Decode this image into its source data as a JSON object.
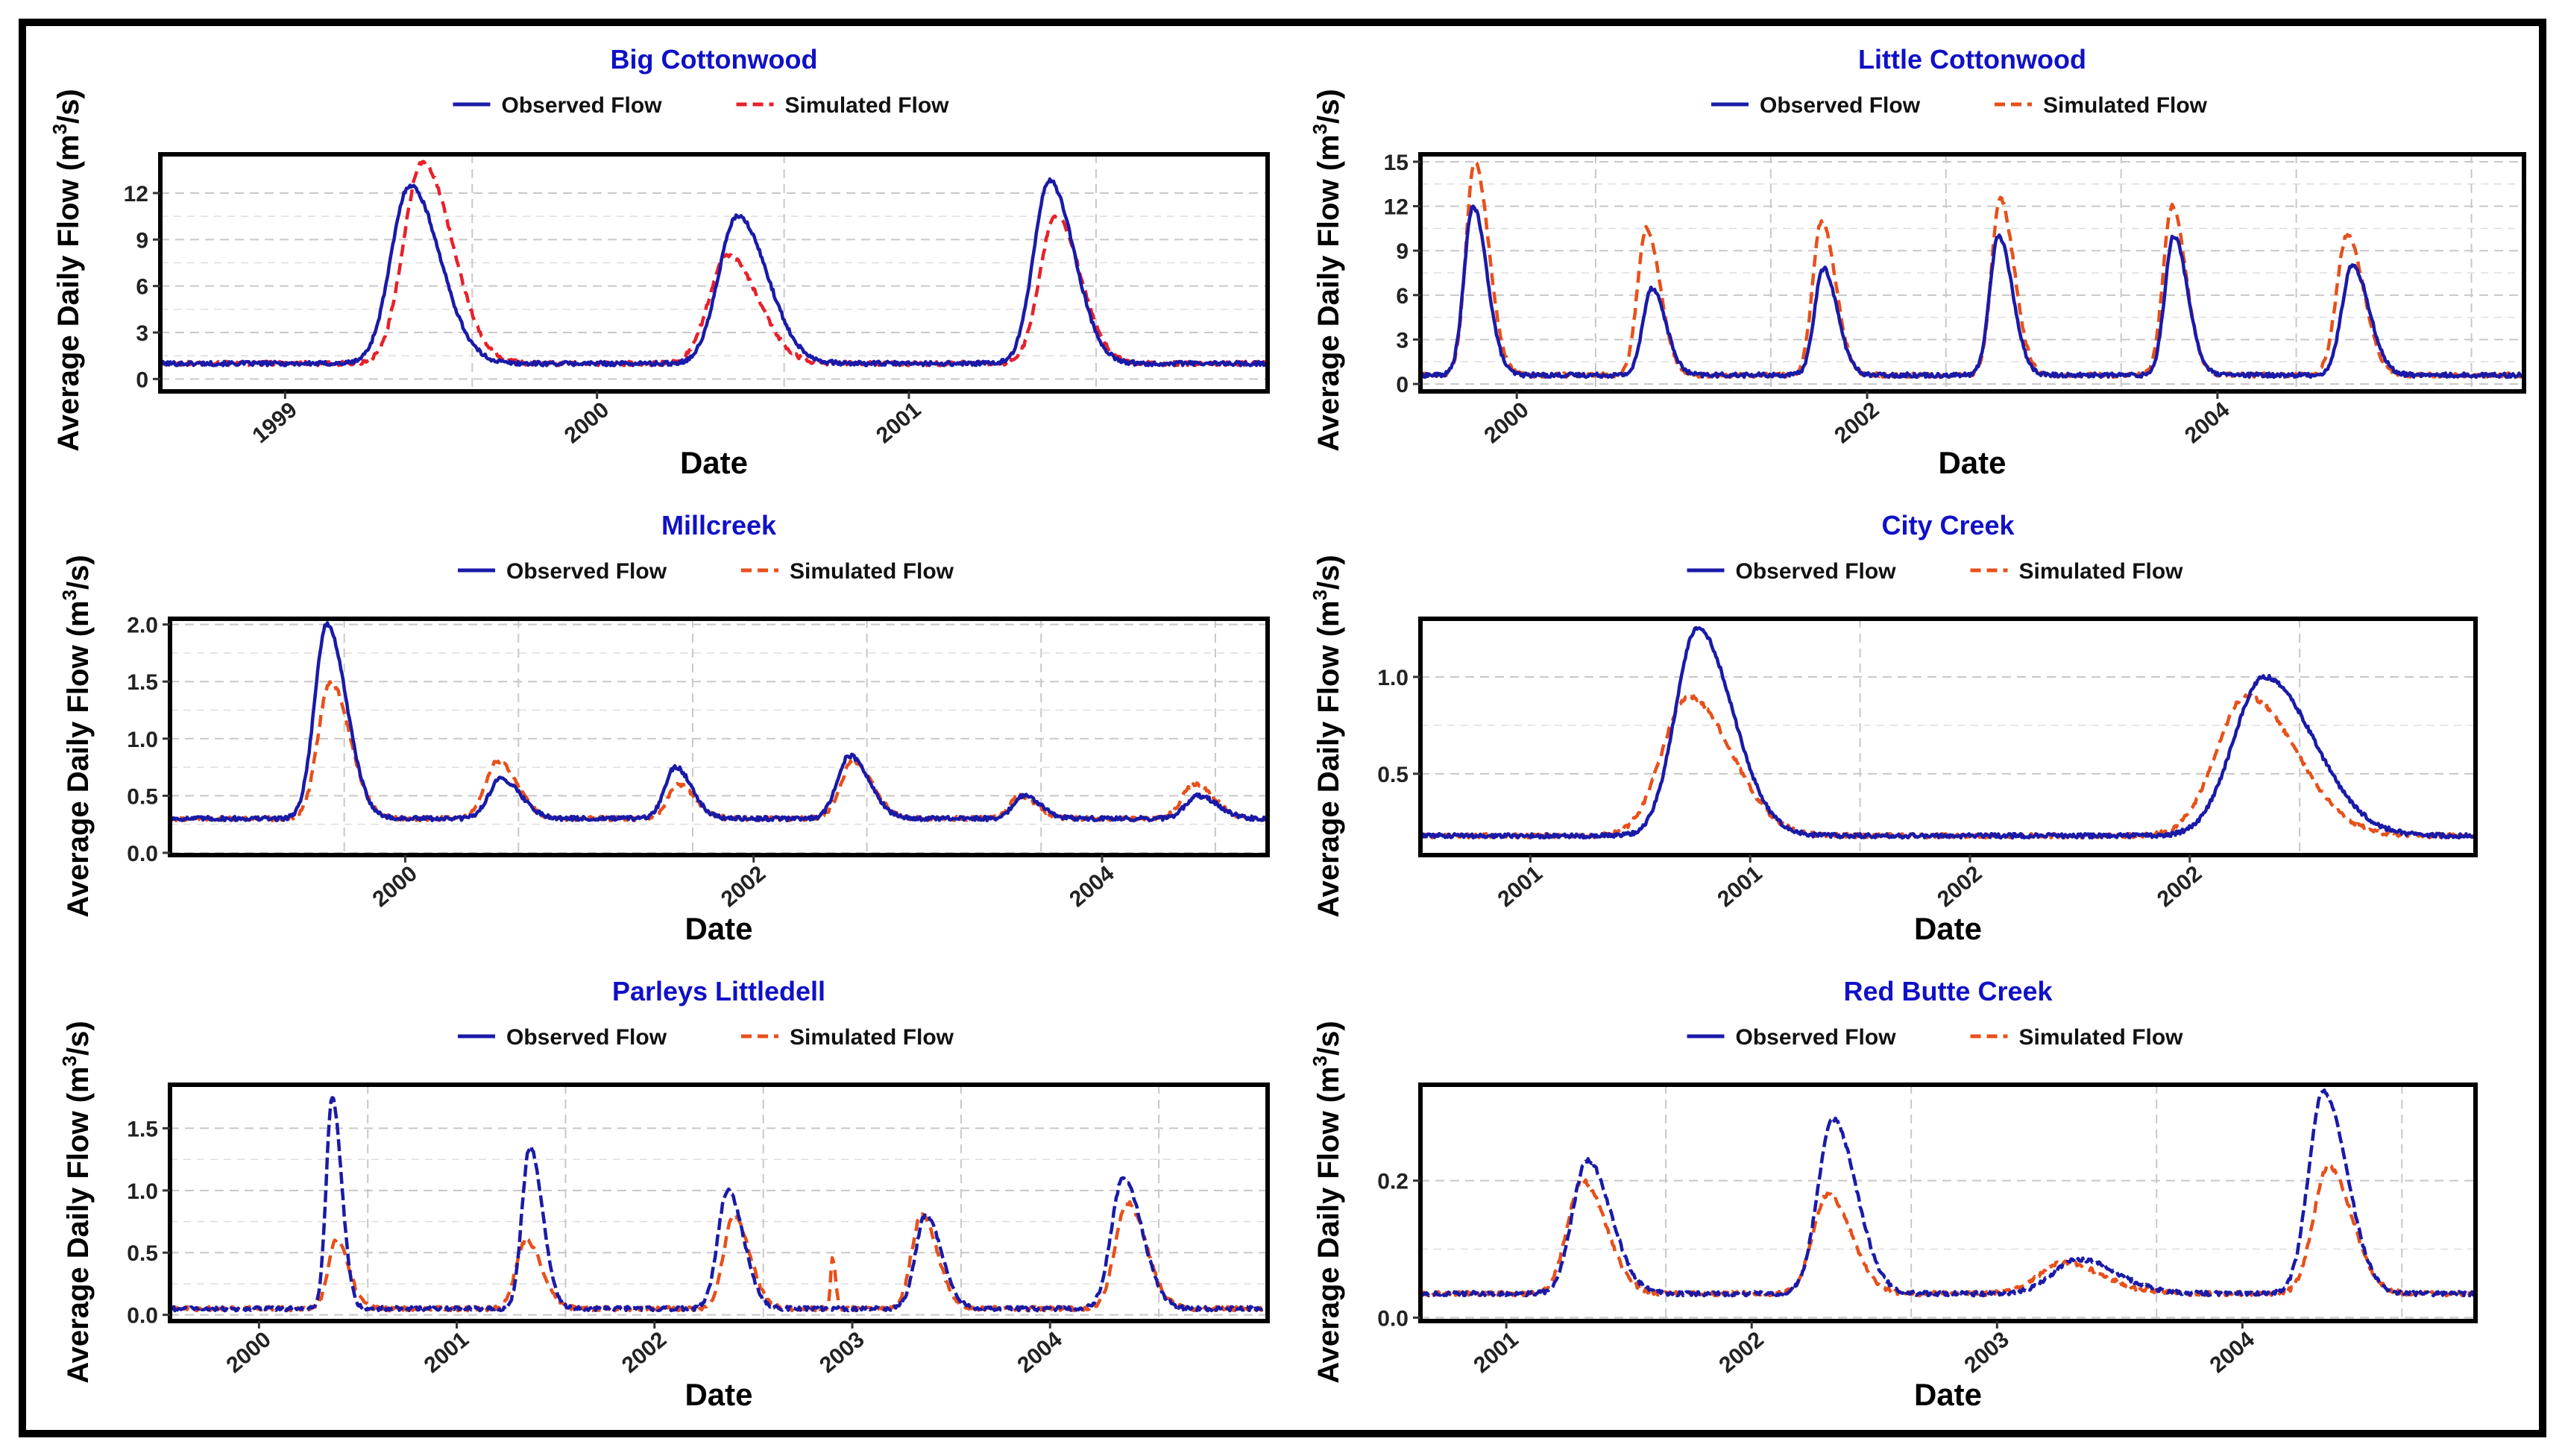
{
  "figure": {
    "colors": {
      "observed": "#1a1aa8",
      "simulated": "#e8501a",
      "simulated_first_panel": "#e8202a",
      "title": "#1010c8",
      "grid": "#c8c8c8"
    }
  },
  "chart_data": [
    {
      "type": "line",
      "title": "Big Cottonwood",
      "xlabel": "Date",
      "ylabel": "Average Daily Flow (m³/s)",
      "ylabel_main": "Average Daily Flow (m",
      "ylabel_sup": "3",
      "ylabel_tail": "/s)",
      "legend": [
        "Observed Flow",
        "Simulated Flow"
      ],
      "legend_position": "top",
      "grid": true,
      "xlim": [
        0,
        3.55
      ],
      "ylim": [
        -0.8,
        14.5
      ],
      "yticks": [
        0,
        3,
        6,
        9,
        12
      ],
      "xticks": [
        {
          "x": 0.4,
          "label": "1999"
        },
        {
          "x": 1.4,
          "label": "2000"
        },
        {
          "x": 2.4,
          "label": "2001"
        }
      ],
      "baseline": 1.0,
      "years": [
        0,
        1,
        2,
        3
      ],
      "series": [
        {
          "name": "Observed Flow",
          "peaks": [
            {
              "t": 0.8,
              "h": 12.5,
              "w": 0.06
            },
            {
              "t": 1.85,
              "h": 10.5,
              "w": 0.06
            },
            {
              "t": 2.85,
              "h": 12.8,
              "w": 0.05
            }
          ]
        },
        {
          "name": "Simulated Flow",
          "peaks": [
            {
              "t": 0.84,
              "h": 14.0,
              "w": 0.06
            },
            {
              "t": 1.82,
              "h": 8.0,
              "w": 0.06
            },
            {
              "t": 2.87,
              "h": 10.5,
              "w": 0.05
            }
          ]
        }
      ]
    },
    {
      "type": "line",
      "title": "Little Cottonwood",
      "xlabel": "Date",
      "ylabel": "Average Daily Flow (m³/s)",
      "ylabel_main": "Average Daily Flow (m",
      "ylabel_sup": "3",
      "ylabel_tail": "/s)",
      "legend": [
        "Observed Flow",
        "Simulated Flow"
      ],
      "legend_position": "top",
      "grid": true,
      "xlim": [
        0,
        6.3
      ],
      "ylim": [
        -0.5,
        15.5
      ],
      "yticks": [
        0,
        3,
        6,
        9,
        12,
        15
      ],
      "xticks": [
        {
          "x": 0.55,
          "label": "2000"
        },
        {
          "x": 2.55,
          "label": "2002"
        },
        {
          "x": 4.55,
          "label": "2004"
        }
      ],
      "baseline": 0.6,
      "years": [
        0,
        1,
        2,
        3,
        4,
        5,
        6
      ],
      "series": [
        {
          "name": "Observed Flow",
          "peaks": [
            {
              "t": 0.3,
              "h": 12.0,
              "w": 0.05
            },
            {
              "t": 1.32,
              "h": 6.5,
              "w": 0.05
            },
            {
              "t": 2.3,
              "h": 7.8,
              "w": 0.05
            },
            {
              "t": 3.3,
              "h": 10.0,
              "w": 0.05
            },
            {
              "t": 4.3,
              "h": 10.0,
              "w": 0.05
            },
            {
              "t": 5.32,
              "h": 8.0,
              "w": 0.06
            }
          ]
        },
        {
          "name": "Simulated Flow",
          "peaks": [
            {
              "t": 0.31,
              "h": 15.0,
              "w": 0.05
            },
            {
              "t": 1.29,
              "h": 10.5,
              "w": 0.05
            },
            {
              "t": 2.29,
              "h": 11.0,
              "w": 0.05
            },
            {
              "t": 3.31,
              "h": 12.5,
              "w": 0.05
            },
            {
              "t": 4.29,
              "h": 12.0,
              "w": 0.05
            },
            {
              "t": 5.29,
              "h": 10.0,
              "w": 0.06
            }
          ]
        }
      ]
    },
    {
      "type": "line",
      "title": "Millcreek",
      "xlabel": "Date",
      "ylabel": "Average Daily Flow (m³/s)",
      "ylabel_main": "Average Daily Flow (m",
      "ylabel_sup": "3",
      "ylabel_tail": "/s)",
      "legend": [
        "Observed Flow",
        "Simulated Flow"
      ],
      "legend_position": "top",
      "grid": true,
      "xlim": [
        0,
        6.3
      ],
      "ylim": [
        -0.02,
        2.05
      ],
      "yticks": [
        0.0,
        0.5,
        1.0,
        1.5,
        2.0
      ],
      "ytick_labels": [
        "0.0",
        "0.5",
        "1.0",
        "1.5",
        "2.0"
      ],
      "xticks": [
        {
          "x": 1.35,
          "label": "2000"
        },
        {
          "x": 3.35,
          "label": "2002"
        },
        {
          "x": 5.35,
          "label": "2004"
        }
      ],
      "baseline": 0.3,
      "years": [
        0,
        1,
        2,
        3,
        4,
        5,
        6
      ],
      "series": [
        {
          "name": "Observed Flow",
          "peaks": [
            {
              "t": 0.9,
              "h": 2.0,
              "w": 0.07
            },
            {
              "t": 1.9,
              "h": 0.65,
              "w": 0.07
            },
            {
              "t": 2.9,
              "h": 0.75,
              "w": 0.06
            },
            {
              "t": 3.9,
              "h": 0.85,
              "w": 0.07
            },
            {
              "t": 4.9,
              "h": 0.5,
              "w": 0.06
            },
            {
              "t": 5.9,
              "h": 0.5,
              "w": 0.07
            }
          ]
        },
        {
          "name": "Simulated Flow",
          "peaks": [
            {
              "t": 0.92,
              "h": 1.5,
              "w": 0.07
            },
            {
              "t": 1.88,
              "h": 0.8,
              "w": 0.07
            },
            {
              "t": 2.92,
              "h": 0.6,
              "w": 0.06
            },
            {
              "t": 3.92,
              "h": 0.8,
              "w": 0.07
            },
            {
              "t": 4.88,
              "h": 0.5,
              "w": 0.06
            },
            {
              "t": 5.88,
              "h": 0.6,
              "w": 0.07
            }
          ]
        }
      ]
    },
    {
      "type": "line",
      "title": "City Creek",
      "xlabel": "Date",
      "ylabel": "Average Daily Flow (m³/s)",
      "ylabel_main": "Average Daily Flow (m",
      "ylabel_sup": "3",
      "ylabel_tail": "/s)",
      "legend": [
        "Observed Flow",
        "Simulated Flow"
      ],
      "legend_position": "top",
      "grid": true,
      "xlim": [
        0,
        2.4
      ],
      "ylim": [
        0.08,
        1.3
      ],
      "yticks": [
        0.5,
        1.0
      ],
      "ytick_labels": [
        "0.5",
        "1.0"
      ],
      "xticks": [
        {
          "x": 0.25,
          "label": "2001"
        },
        {
          "x": 0.75,
          "label": "2001"
        },
        {
          "x": 1.25,
          "label": "2002"
        },
        {
          "x": 1.75,
          "label": "2002"
        }
      ],
      "baseline": 0.18,
      "years": [
        0,
        1,
        2
      ],
      "series": [
        {
          "name": "Observed Flow",
          "peaks": [
            {
              "t": 0.63,
              "h": 1.25,
              "w": 0.05
            },
            {
              "t": 1.92,
              "h": 1.0,
              "w": 0.07
            }
          ]
        },
        {
          "name": "Simulated Flow",
          "peaks": [
            {
              "t": 0.61,
              "h": 0.9,
              "w": 0.06
            },
            {
              "t": 1.88,
              "h": 0.9,
              "w": 0.07
            }
          ]
        }
      ]
    },
    {
      "type": "line",
      "title": "Parleys Littledell",
      "xlabel": "Date",
      "ylabel": "Average Daily Flow (m³/s)",
      "ylabel_main": "Average Daily Flow (m",
      "ylabel_sup": "3",
      "ylabel_tail": "/s)",
      "legend": [
        "Observed Flow",
        "Simulated Flow"
      ],
      "legend_position": "top",
      "grid": true,
      "xlim": [
        0,
        5.55
      ],
      "ylim": [
        -0.05,
        1.85
      ],
      "yticks": [
        0.0,
        0.5,
        1.0,
        1.5
      ],
      "ytick_labels": [
        "0.0",
        "0.5",
        "1.0",
        "1.5"
      ],
      "xticks": [
        {
          "x": 0.45,
          "label": "2000"
        },
        {
          "x": 1.45,
          "label": "2001"
        },
        {
          "x": 2.45,
          "label": "2002"
        },
        {
          "x": 3.45,
          "label": "2003"
        },
        {
          "x": 4.45,
          "label": "2004"
        }
      ],
      "baseline": 0.05,
      "years": [
        0,
        1,
        2,
        3,
        4,
        5
      ],
      "series": [
        {
          "name": "Observed Flow",
          "peaks": [
            {
              "t": 0.82,
              "h": 1.75,
              "w": 0.03
            },
            {
              "t": 1.82,
              "h": 1.35,
              "w": 0.04
            },
            {
              "t": 2.82,
              "h": 1.0,
              "w": 0.05
            },
            {
              "t": 3.82,
              "h": 0.8,
              "w": 0.05
            },
            {
              "t": 4.82,
              "h": 1.1,
              "w": 0.06
            }
          ]
        },
        {
          "name": "Simulated Flow",
          "peaks": [
            {
              "t": 0.84,
              "h": 0.6,
              "w": 0.04
            },
            {
              "t": 1.8,
              "h": 0.6,
              "w": 0.05
            },
            {
              "t": 2.85,
              "h": 0.8,
              "w": 0.05
            },
            {
              "t": 3.35,
              "h": 0.45,
              "w": 0.01
            },
            {
              "t": 3.8,
              "h": 0.8,
              "w": 0.05
            },
            {
              "t": 4.84,
              "h": 0.9,
              "w": 0.06
            }
          ]
        }
      ]
    },
    {
      "type": "line",
      "title": "Red Butte Creek",
      "xlabel": "Date",
      "ylabel": "Average Daily Flow (m³/s)",
      "ylabel_main": "Average Daily Flow (m",
      "ylabel_sup": "3",
      "ylabel_tail": "/s)",
      "legend": [
        "Observed Flow",
        "Simulated Flow"
      ],
      "legend_position": "top",
      "grid": true,
      "xlim": [
        0,
        4.3
      ],
      "ylim": [
        -0.005,
        0.34
      ],
      "yticks": [
        0.0,
        0.2
      ],
      "ytick_labels": [
        "0.0",
        "0.2"
      ],
      "xticks": [
        {
          "x": 0.35,
          "label": "2001"
        },
        {
          "x": 1.35,
          "label": "2002"
        },
        {
          "x": 2.35,
          "label": "2003"
        },
        {
          "x": 3.35,
          "label": "2004"
        }
      ],
      "baseline": 0.035,
      "years": [
        0,
        1,
        2,
        3,
        4
      ],
      "series": [
        {
          "name": "Observed Flow",
          "peaks": [
            {
              "t": 0.68,
              "h": 0.23,
              "w": 0.06
            },
            {
              "t": 1.68,
              "h": 0.29,
              "w": 0.06
            },
            {
              "t": 2.68,
              "h": 0.085,
              "w": 0.1
            },
            {
              "t": 3.68,
              "h": 0.33,
              "w": 0.06
            }
          ]
        },
        {
          "name": "Simulated Flow",
          "peaks": [
            {
              "t": 0.66,
              "h": 0.2,
              "w": 0.06
            },
            {
              "t": 1.66,
              "h": 0.18,
              "w": 0.06
            },
            {
              "t": 2.62,
              "h": 0.08,
              "w": 0.1
            },
            {
              "t": 3.7,
              "h": 0.22,
              "w": 0.06
            }
          ]
        }
      ]
    }
  ]
}
